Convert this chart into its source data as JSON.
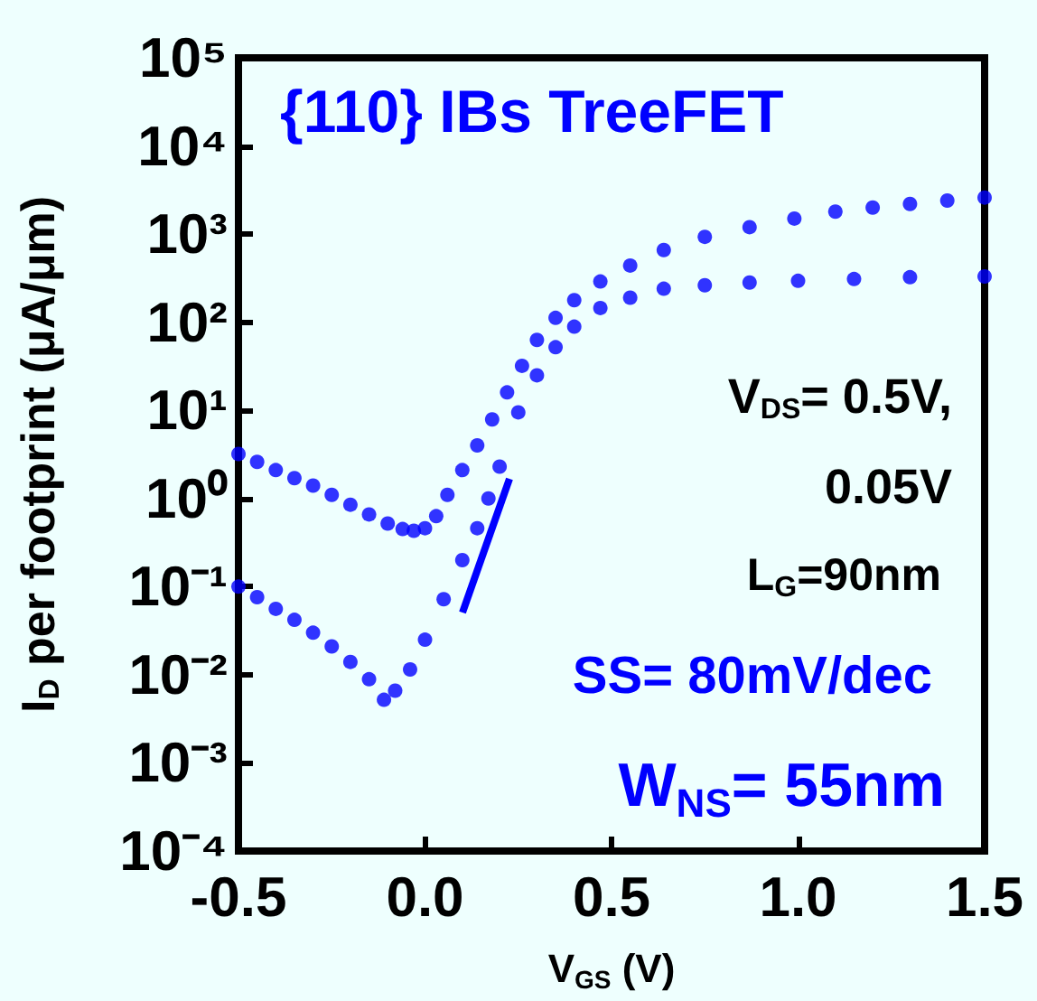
{
  "chart_data": {
    "type": "scatter",
    "title": "{110} IBs TreeFET",
    "xlabel": "V$_{GS}$ (V)",
    "ylabel": "I$_{D}$ per footprint (μA/μm)",
    "annotations": [
      "V$_{DS}$= 0.5V,",
      "0.05V",
      "L$_{G}$=90nm",
      "SS= 80mV/dec",
      "W$_{NS}$= 55nm"
    ],
    "series": [
      {
        "color": "#0000ff",
        "x": [
          -0.5,
          -0.45,
          -0.4,
          -0.35,
          -0.3,
          -0.25,
          -0.2,
          -0.15,
          -0.1,
          -0.06,
          -0.03,
          0.0,
          0.03,
          0.06,
          0.1,
          0.14,
          0.18,
          0.22,
          0.26,
          0.3,
          0.35,
          0.4,
          0.47,
          0.55,
          0.64,
          0.75,
          0.87,
          0.99,
          1.1,
          1.2,
          1.3,
          1.4,
          1.5
        ],
        "values": [
          3.2,
          2.6,
          2.1,
          1.7,
          1.4,
          1.1,
          0.85,
          0.66,
          0.52,
          0.45,
          0.43,
          0.46,
          0.63,
          1.1,
          2.1,
          4,
          7.9,
          16,
          32,
          63,
          112,
          178,
          290,
          440,
          660,
          930,
          1200,
          1500,
          1800,
          2000,
          2200,
          2400,
          2600
        ]
      },
      {
        "color": "#0000ff",
        "x": [
          -0.5,
          -0.45,
          -0.4,
          -0.35,
          -0.3,
          -0.25,
          -0.2,
          -0.15,
          -0.11,
          -0.08,
          -0.04,
          0.0,
          0.05,
          0.1,
          0.14,
          0.17,
          0.2,
          0.25,
          0.3,
          0.35,
          0.4,
          0.47,
          0.55,
          0.64,
          0.75,
          0.87,
          1.0,
          1.15,
          1.3,
          1.5
        ],
        "values": [
          0.1,
          0.076,
          0.056,
          0.042,
          0.03,
          0.021,
          0.014,
          0.0089,
          0.0052,
          0.0066,
          0.0115,
          0.025,
          0.072,
          0.2,
          0.46,
          1.0,
          2.3,
          9.5,
          25,
          52,
          89,
          145,
          190,
          240,
          263,
          282,
          295,
          309,
          324,
          331
        ]
      }
    ],
    "xlim": [
      -0.5,
      1.5
    ],
    "xticks": [
      {
        "value": -0.5,
        "label": "-0.5"
      },
      {
        "value": 0,
        "label": "0.0"
      },
      {
        "value": 0.5,
        "label": "0.5"
      },
      {
        "value": 1,
        "label": "1.0"
      },
      {
        "value": 1.5,
        "label": "1.5"
      }
    ],
    "ylim": [
      0.0001,
      100000
    ],
    "yticks": [
      {
        "value": 0.0001,
        "label": "10⁻⁴"
      },
      {
        "value": 0.001,
        "label": "10⁻³"
      },
      {
        "value": 0.01,
        "label": "10⁻²"
      },
      {
        "value": 0.1,
        "label": "10⁻¹"
      },
      {
        "value": 1,
        "label": "10⁰"
      },
      {
        "value": 10,
        "label": "10¹"
      },
      {
        "value": 100,
        "label": "10²"
      },
      {
        "value": 1000,
        "label": "10³"
      },
      {
        "value": 10000,
        "label": "10⁴"
      },
      {
        "value": 100000,
        "label": "10⁵"
      }
    ],
    "log": "y",
    "grid": false,
    "marker": "circle"
  }
}
